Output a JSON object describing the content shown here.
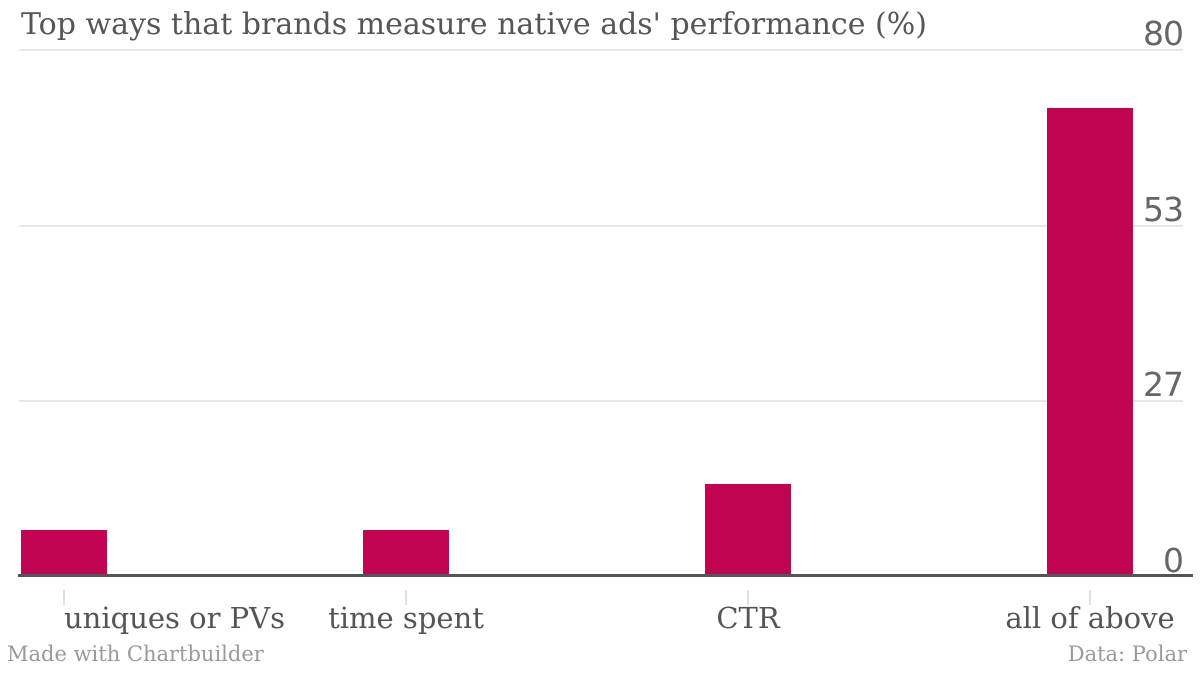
{
  "chart_data": {
    "type": "bar",
    "title": "Top ways that brands measure native ads' performance (%)",
    "categories": [
      "uniques or PVs",
      "time spent",
      "CTR",
      "all of above"
    ],
    "values": [
      7,
      7,
      14,
      71
    ],
    "xlabel": "",
    "ylabel": "",
    "ylim": [
      0,
      80
    ],
    "yticks": [
      0,
      27,
      53,
      80
    ],
    "grid": "horizontal-light-gridlines",
    "legend": "none",
    "series_color": "#C10452",
    "credit": "Made with Chartbuilder",
    "source": "Data: Polar"
  },
  "colors": {
    "bar": "#C10452",
    "title_text": "#565656",
    "ytick_text": "#666666",
    "category_text": "#555555",
    "footer_text": "#9A9A9A",
    "gridline": "#E7E7E7",
    "axis_line": "#555555",
    "tick_mark": "#E0E0E0",
    "background": "#FFFFFF"
  }
}
